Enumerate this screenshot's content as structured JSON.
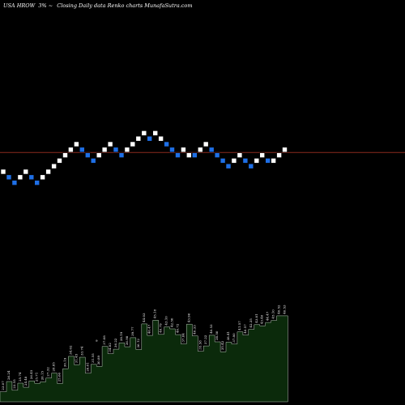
{
  "header": {
    "ticker": "USA HROW",
    "change": "3% ~",
    "caption": "Closing Daily data  Renko  charts MunafaSutra.com"
  },
  "colors": {
    "background": "#000000",
    "brick_up": "#ffffff",
    "brick_down": "#1e6fe6",
    "ref_line": "#8b2b1e",
    "volume_fill": "#0b2a0b",
    "volume_edge": "#b9c8b9",
    "text": "#ffffff"
  },
  "chart_data": {
    "type": "renko",
    "title": "USA HROW 3% ~  Closing Daily data  Renko  charts MunafaSutra.com",
    "bricks": {
      "direction": [
        "up",
        "down",
        "down",
        "up",
        "up",
        "down",
        "down",
        "up",
        "up",
        "up",
        "up",
        "up",
        "up",
        "up",
        "down",
        "down",
        "down",
        "up",
        "up",
        "up",
        "down",
        "down",
        "up",
        "up",
        "up",
        "up",
        "down",
        "up",
        "up",
        "down",
        "down",
        "down",
        "up",
        "up",
        "down",
        "up",
        "up",
        "down",
        "down",
        "down",
        "down",
        "up",
        "up",
        "down",
        "down",
        "up",
        "up",
        "down",
        "up",
        "up",
        "up"
      ],
      "level": [
        0,
        -1,
        -2,
        -1,
        0,
        -1,
        -2,
        -1,
        0,
        1,
        2,
        3,
        4,
        5,
        4,
        3,
        2,
        3,
        4,
        5,
        4,
        3,
        4,
        5,
        6,
        7,
        6,
        7,
        6,
        5,
        4,
        3,
        4,
        3,
        3,
        4,
        5,
        4,
        3,
        2,
        1,
        2,
        3,
        2,
        1,
        2,
        3,
        2,
        2,
        3,
        4
      ]
    },
    "reference_level": 3.5,
    "volume_labels": [
      "23.07",
      "26.24",
      "23.55",
      "25.74",
      "24.48",
      "26.45",
      "25.71",
      "26.15",
      "27.32",
      "28.85",
      "25.66",
      "30.19",
      "34.02",
      "31.45",
      "33.74",
      "28.81",
      "31.55",
      "30.89",
      "37.08",
      "34.82",
      "36.22",
      "38.19",
      "36.98",
      "39.77",
      "36.12",
      "44.03",
      "40.47",
      "45.18",
      "40.79",
      "43.10",
      "42.50",
      "40.72",
      "37.84",
      "43.96",
      "40.33",
      "35.58",
      "37.22",
      "40.53",
      "38.50",
      "35.42",
      "38.41",
      "37.80",
      "41.57",
      "40.57",
      "42.35",
      "43.81",
      "43.46",
      "44.47",
      "45.10",
      "46.52",
      "46.53"
    ],
    "volume_extra": "9"
  }
}
